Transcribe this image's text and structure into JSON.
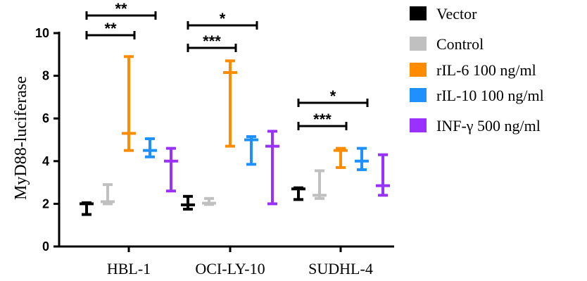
{
  "chart_data": {
    "type": "floating-bar",
    "ylabel": "MyD88-luciferase",
    "ylim": [
      0,
      10
    ],
    "yticks": [
      0,
      2,
      4,
      6,
      8,
      10
    ],
    "categories": [
      "HBL-1",
      "OCI-LY-10",
      "SUDHL-4"
    ],
    "series": [
      {
        "name": "Vector",
        "color": "#000000",
        "min": [
          1.5,
          1.75,
          2.2
        ],
        "max": [
          2.05,
          2.35,
          2.75
        ],
        "line": [
          2.0,
          1.95,
          2.7
        ]
      },
      {
        "name": "Control",
        "color": "#c0c0c0",
        "min": [
          2.0,
          1.97,
          2.25
        ],
        "max": [
          2.9,
          2.25,
          3.55
        ],
        "line": [
          2.1,
          2.03,
          2.4
        ]
      },
      {
        "name": "rIL-6 100 ng/ml",
        "color": "#ff8c00",
        "min": [
          4.5,
          4.7,
          3.7
        ],
        "max": [
          8.9,
          8.7,
          4.6
        ],
        "line": [
          5.3,
          8.15,
          4.5
        ]
      },
      {
        "name": "rIL-10 100 ng/ml",
        "color": "#1e90ff",
        "min": [
          4.2,
          3.85,
          3.6
        ],
        "max": [
          5.05,
          5.15,
          4.6
        ],
        "line": [
          4.5,
          5.0,
          4.0
        ]
      },
      {
        "name": "INF-γ 500 ng/ml",
        "color": "#9932ff",
        "min": [
          2.6,
          2.0,
          2.4
        ],
        "max": [
          4.6,
          5.4,
          4.3
        ],
        "line": [
          4.0,
          4.7,
          2.85
        ]
      }
    ],
    "significance": [
      {
        "category": "HBL-1",
        "from_series": 0,
        "to_series": 3,
        "label": "**"
      },
      {
        "category": "HBL-1",
        "from_series": 0,
        "to_series": 2,
        "label": "**"
      },
      {
        "category": "OCI-LY-10",
        "from_series": 0,
        "to_series": 3,
        "label": "*"
      },
      {
        "category": "OCI-LY-10",
        "from_series": 0,
        "to_series": 2,
        "label": "***"
      },
      {
        "category": "SUDHL-4",
        "from_series": 0,
        "to_series": 3,
        "label": "*"
      },
      {
        "category": "SUDHL-4",
        "from_series": 0,
        "to_series": 2,
        "label": "***"
      }
    ],
    "legend_position": "top-right"
  }
}
